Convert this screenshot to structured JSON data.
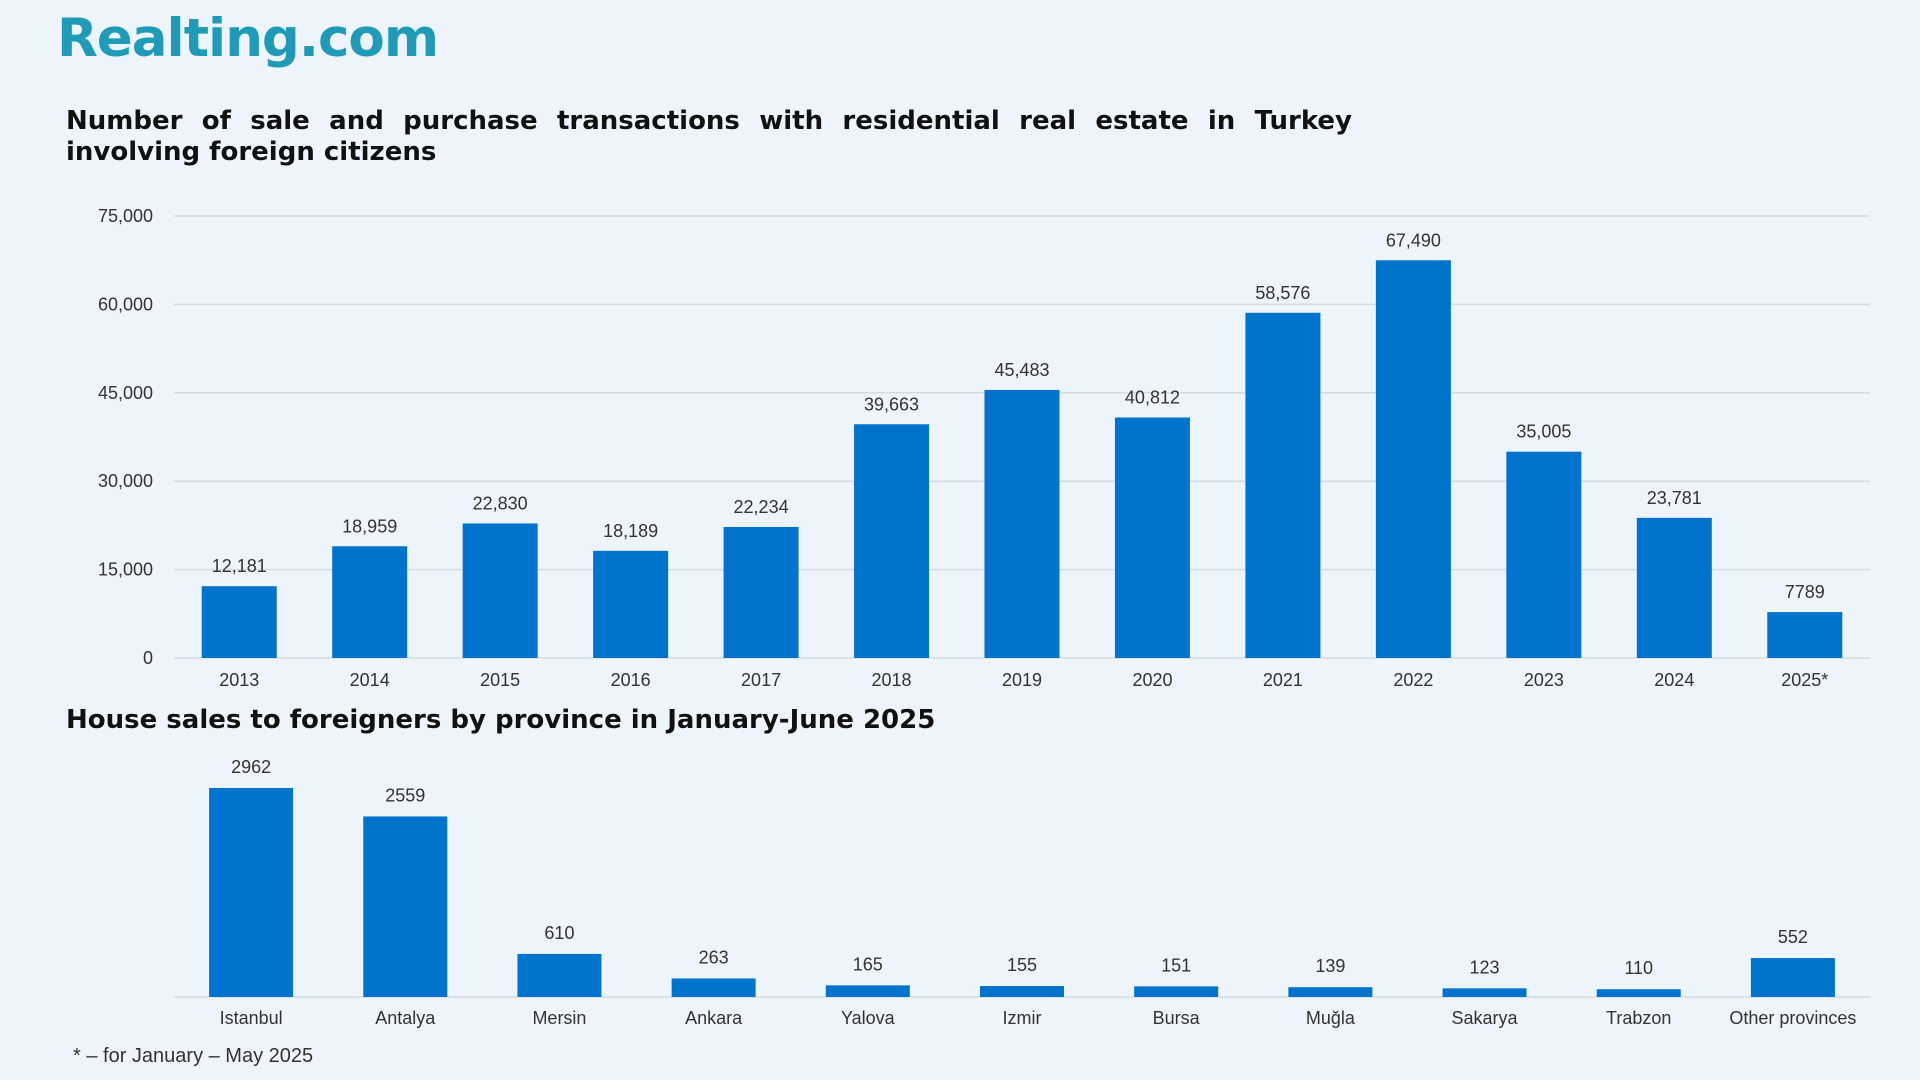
{
  "brand": {
    "logo_text": "Realting.com"
  },
  "footnote": "* – for January – May 2025",
  "colors": {
    "bar": "#0074cc",
    "grid": "#d5dbe2",
    "background": "#edf4fb",
    "brand": "#1f9bb8"
  },
  "chart_data": [
    {
      "type": "bar",
      "title": "Number of sale and purchase transactions with residential real estate in Turkey involving foreign citizens",
      "categories": [
        "2013",
        "2014",
        "2015",
        "2016",
        "2017",
        "2018",
        "2019",
        "2020",
        "2021",
        "2022",
        "2023",
        "2024",
        "2025*"
      ],
      "values": [
        12181,
        18959,
        22830,
        18189,
        22234,
        39663,
        45483,
        40812,
        58576,
        67490,
        35005,
        23781,
        7789
      ],
      "value_labels": [
        "12,181",
        "18,959",
        "22,830",
        "18,189",
        "22,234",
        "39,663",
        "45,483",
        "40,812",
        "58,576",
        "67,490",
        "35,005",
        "23,781",
        "7789"
      ],
      "ylim": [
        0,
        75000
      ],
      "yticks": [
        0,
        15000,
        30000,
        45000,
        60000,
        75000
      ],
      "ytick_labels": [
        "0",
        "15,000",
        "30,000",
        "45,000",
        "60,000",
        "75,000"
      ],
      "grid": true,
      "xlabel": "",
      "ylabel": ""
    },
    {
      "type": "bar",
      "title": "House sales to foreigners by province in January-June 2025",
      "categories": [
        "Istanbul",
        "Antalya",
        "Mersin",
        "Ankara",
        "Yalova",
        "Izmir",
        "Bursa",
        "Muğla",
        "Sakarya",
        "Trabzon",
        "Other provinces"
      ],
      "values": [
        2962,
        2559,
        610,
        263,
        165,
        155,
        151,
        139,
        123,
        110,
        552
      ],
      "value_labels": [
        "2962",
        "2559",
        "610",
        "263",
        "165",
        "155",
        "151",
        "139",
        "123",
        "110",
        "552"
      ],
      "grid": false,
      "xlabel": "",
      "ylabel": ""
    }
  ]
}
